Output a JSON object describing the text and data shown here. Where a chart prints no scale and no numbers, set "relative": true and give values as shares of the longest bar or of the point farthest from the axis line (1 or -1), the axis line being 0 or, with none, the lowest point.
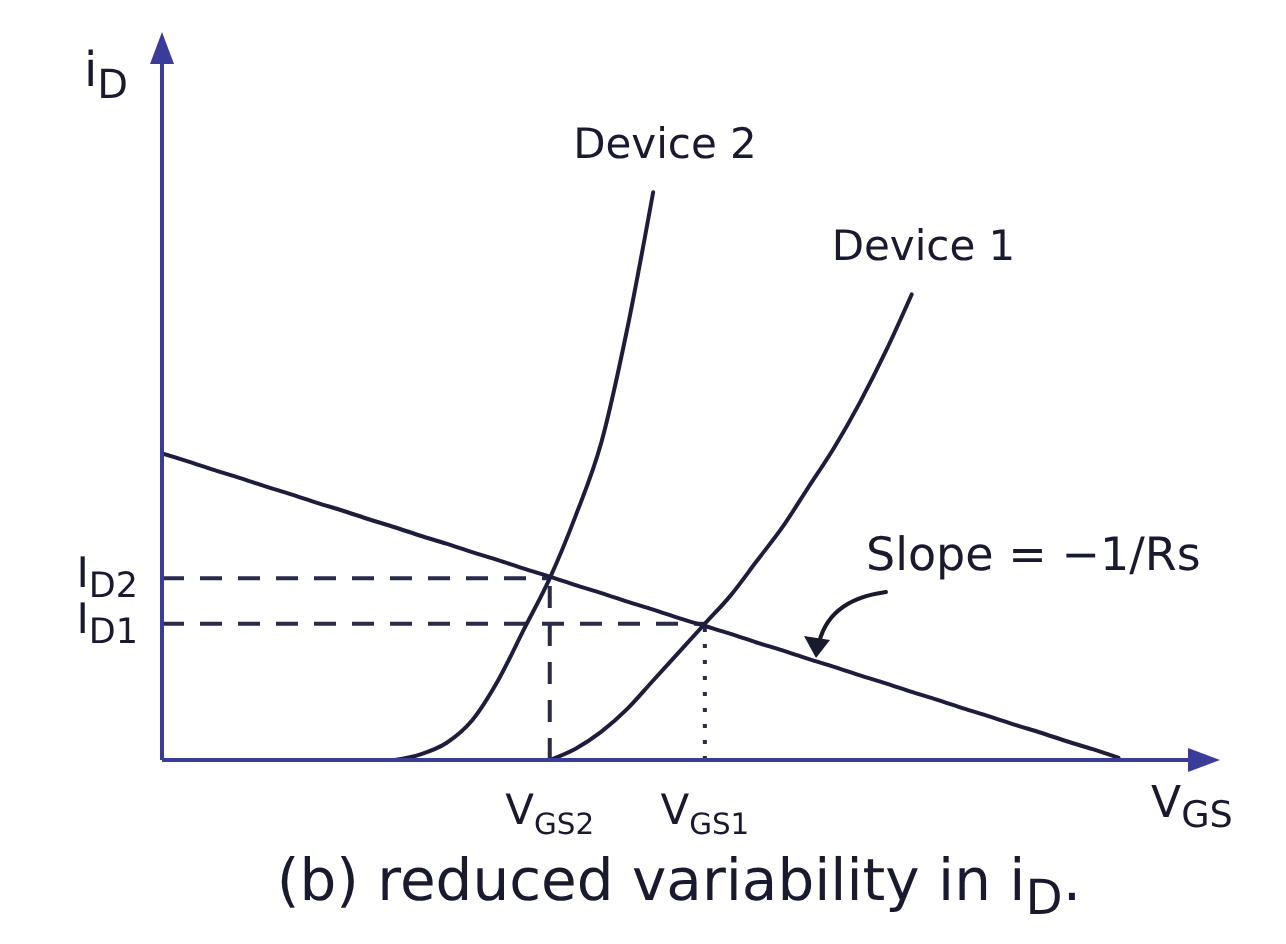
{
  "chart_data": {
    "type": "line",
    "relative": true,
    "xlabel": "V$_{GS}$",
    "ylabel": "i$_{D}$",
    "categories": [
      null,
      null,
      null,
      null,
      null,
      null,
      null,
      null,
      null,
      null,
      null,
      null,
      null,
      null,
      null,
      "V$_{GS2}$",
      null,
      null,
      null,
      null,
      null,
      "V$_{GS1}$",
      null,
      null,
      null,
      null,
      null,
      null,
      null,
      null,
      null,
      null,
      null,
      null,
      null,
      null,
      null,
      null,
      null,
      null,
      null
    ],
    "series": [
      {
        "name": "Device 2",
        "color": "#1e1e3c",
        "values": [
          null,
          null,
          null,
          null,
          null,
          null,
          null,
          null,
          null,
          0,
          0.01,
          0.03,
          0.07,
          0.14,
          0.23,
          0.32,
          0.43,
          0.56,
          0.76,
          1,
          null,
          null,
          null,
          null,
          null,
          null,
          null,
          null,
          null,
          null,
          null,
          null,
          null,
          null,
          null,
          null,
          null,
          null,
          null,
          null,
          null
        ]
      },
      {
        "name": "Device 1",
        "color": "#1e1e3c",
        "values": [
          null,
          null,
          null,
          null,
          null,
          null,
          null,
          null,
          null,
          null,
          null,
          null,
          null,
          null,
          null,
          0,
          0.02,
          0.05,
          0.09,
          0.14,
          0.19,
          0.24,
          0.29,
          0.35,
          0.41,
          0.48,
          0.55,
          0.63,
          0.72,
          0.82,
          null,
          null,
          null,
          null,
          null,
          null,
          null,
          null,
          null,
          null,
          null
        ]
      },
      {
        "color": "#1e1e3c",
        "values": [
          0.54,
          0.526,
          0.511,
          0.497,
          0.482,
          0.468,
          0.453,
          0.439,
          0.424,
          0.41,
          0.395,
          0.381,
          0.366,
          0.352,
          0.337,
          0.323,
          0.308,
          0.294,
          0.279,
          0.265,
          0.25,
          0.236,
          0.222,
          0.207,
          0.193,
          0.178,
          0.164,
          0.149,
          0.135,
          0.12,
          0.106,
          0.091,
          0.077,
          0.062,
          0.048,
          0.033,
          0.019,
          0.004,
          null,
          null,
          null
        ]
      }
    ],
    "ref_lines": [
      {
        "axis": "y",
        "value": 0.32,
        "label": "I$_{D2}$",
        "color": "#2a2a4a",
        "line_style": "dashed"
      },
      {
        "axis": "y",
        "value": 0.24,
        "label": "I$_{D1}$",
        "color": "#2a2a4a",
        "line_style": "dashed"
      },
      {
        "axis": "x",
        "value": "V$_{GS2}$",
        "color": "#2a2a4a",
        "line_style": "dashed"
      },
      {
        "axis": "x",
        "value": "V$_{GS1}$",
        "color": "#2a2a4a",
        "line_style": "dotted"
      }
    ],
    "annotations": [
      "Slope = −1/Rs",
      "(b) reduced variability in i$_{D}$."
    ]
  }
}
